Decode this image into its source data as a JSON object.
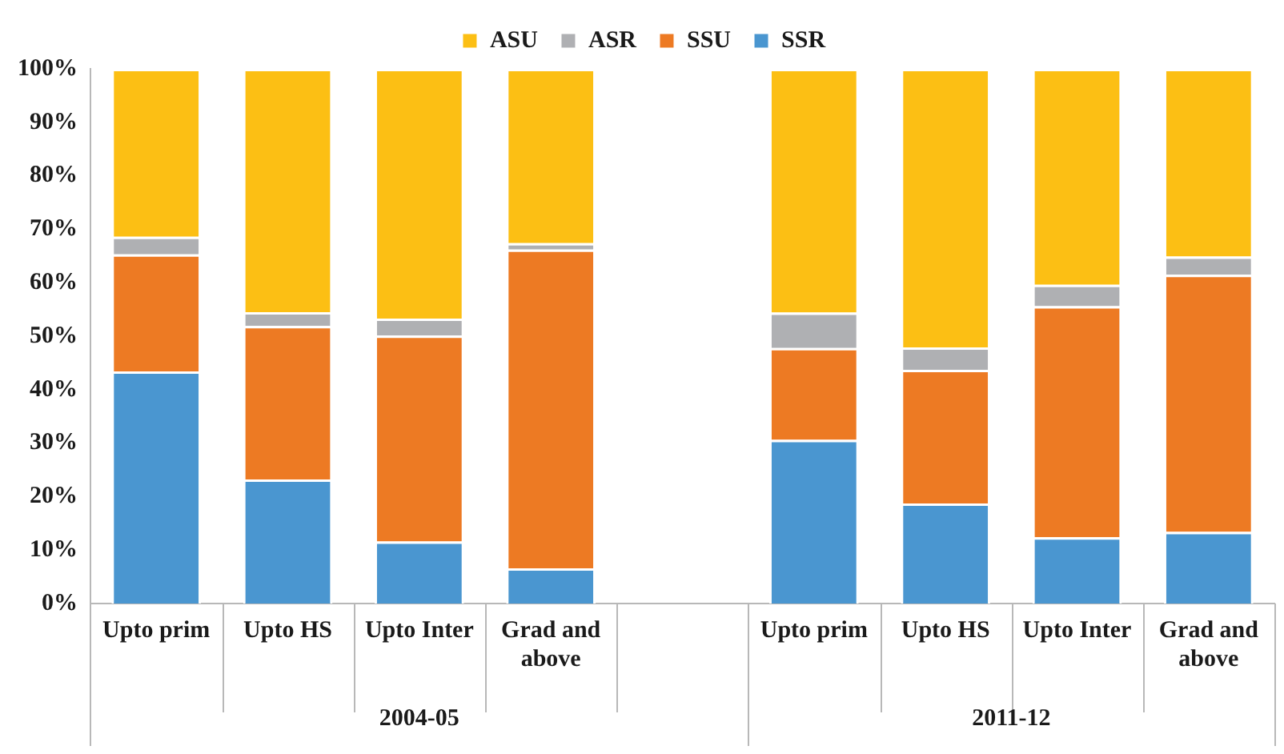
{
  "chart_data": {
    "type": "bar",
    "stacked": true,
    "categories": [
      "Upto prim",
      "Upto HS",
      "Upto Inter",
      "Grad and above",
      null,
      "Upto prim",
      "Upto HS",
      "Upto Inter",
      "Grad and above"
    ],
    "series": [
      {
        "name": "SSR",
        "color": "#4a96d0",
        "values": [
          43.4,
          23.2,
          11.6,
          6.6,
          null,
          30.6,
          18.7,
          12.4,
          13.4
        ]
      },
      {
        "name": "SSU",
        "color": "#ed7a23",
        "values": [
          21.9,
          28.7,
          38.5,
          59.6,
          null,
          17.2,
          25.0,
          43.2,
          48.1
        ]
      },
      {
        "name": "ASR",
        "color": "#afb0b3",
        "values": [
          3.3,
          2.6,
          3.2,
          1.2,
          null,
          6.6,
          4.2,
          4.0,
          3.4
        ]
      },
      {
        "name": "ASU",
        "color": "#fcbf14",
        "values": [
          31.4,
          45.5,
          46.7,
          32.6,
          null,
          45.6,
          52.1,
          40.4,
          35.1
        ]
      }
    ],
    "ylim": [
      0,
      100
    ],
    "yticks": [
      {
        "value": 0,
        "label": "0%"
      },
      {
        "value": 10,
        "label": "10%"
      },
      {
        "value": 20,
        "label": "20%"
      },
      {
        "value": 30,
        "label": "30%"
      },
      {
        "value": 40,
        "label": "40%"
      },
      {
        "value": 50,
        "label": "50%"
      },
      {
        "value": 60,
        "label": "60%"
      },
      {
        "value": 70,
        "label": "70%"
      },
      {
        "value": 80,
        "label": "80%"
      },
      {
        "value": 90,
        "label": "90%"
      },
      {
        "value": 100,
        "label": "100%"
      }
    ],
    "grid": false,
    "legend": "top",
    "annotations": [
      "2004-05",
      "2011-12"
    ]
  }
}
